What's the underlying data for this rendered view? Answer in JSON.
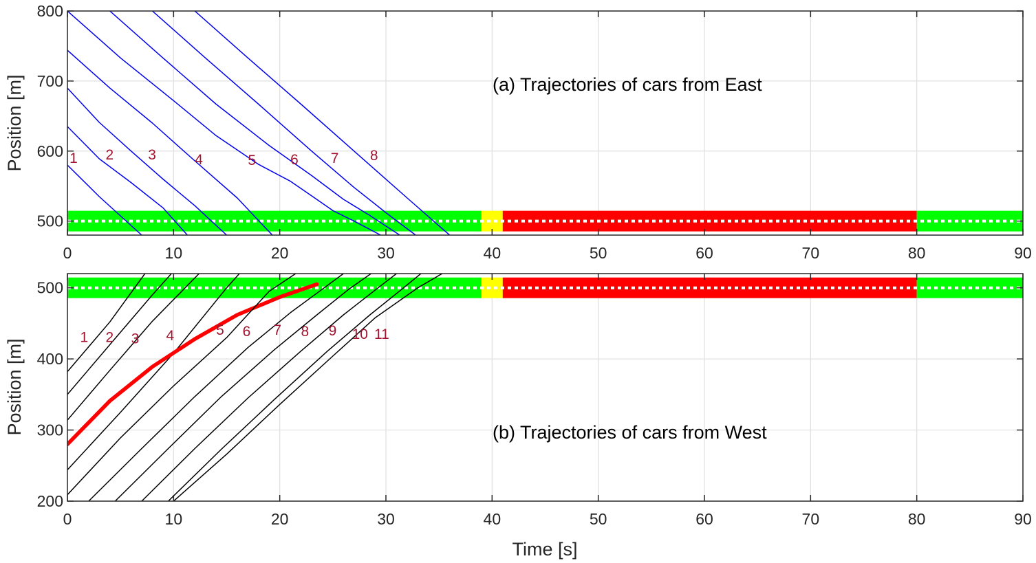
{
  "chart_data": [
    {
      "type": "line",
      "annotation": "(a) Trajectories of cars from East",
      "xlabel": "",
      "ylabel": "Position [m]",
      "xlim": [
        0,
        90
      ],
      "ylim": [
        480,
        800
      ],
      "xticks": [
        0,
        10,
        20,
        30,
        40,
        50,
        60,
        70,
        80,
        90
      ],
      "yticks": [
        500,
        600,
        700,
        800
      ],
      "grid": true,
      "signal": {
        "position": 500,
        "phases": [
          {
            "color": "green",
            "hex": "#00ff00",
            "start": 0,
            "end": 39
          },
          {
            "color": "yellow",
            "hex": "#ffff00",
            "start": 39,
            "end": 41
          },
          {
            "color": "red",
            "hex": "#ff0000",
            "start": 41,
            "end": 80
          },
          {
            "color": "green",
            "hex": "#00ff00",
            "start": 80,
            "end": 90
          }
        ]
      },
      "line_color": "#0000ee",
      "series": [
        {
          "name": "1",
          "x": [
            0,
            3,
            7
          ],
          "y": [
            580,
            535,
            480
          ]
        },
        {
          "name": "2",
          "x": [
            0,
            3,
            6,
            9,
            11.3
          ],
          "y": [
            635,
            589,
            555,
            519,
            480
          ]
        },
        {
          "name": "3",
          "x": [
            0,
            3,
            6,
            9,
            12,
            15
          ],
          "y": [
            690,
            641,
            600,
            560,
            522,
            480
          ]
        },
        {
          "name": "4",
          "x": [
            0,
            4,
            8,
            12,
            16,
            19.3
          ],
          "y": [
            744,
            690,
            640,
            586,
            533,
            480
          ]
        },
        {
          "name": "5",
          "x": [
            0,
            5,
            10,
            14,
            18,
            21,
            23,
            25,
            27,
            29.5
          ],
          "y": [
            800,
            733,
            672,
            622,
            581,
            557,
            536,
            515,
            500,
            480
          ]
        },
        {
          "name": "6",
          "x": [
            4,
            9,
            14,
            19,
            23,
            26,
            28.5,
            31.3
          ],
          "y": [
            800,
            733,
            667,
            608,
            565,
            531,
            508,
            480
          ]
        },
        {
          "name": "7",
          "x": [
            8,
            13,
            18,
            23,
            27,
            30,
            32.8
          ],
          "y": [
            800,
            733,
            667,
            600,
            548,
            512,
            480
          ]
        },
        {
          "name": "8",
          "x": [
            12,
            17,
            22,
            27,
            32,
            36
          ],
          "y": [
            800,
            733,
            667,
            600,
            533,
            480
          ]
        }
      ],
      "labels": [
        {
          "text": "1",
          "x": 0.2,
          "y": 583
        },
        {
          "text": "2",
          "x": 3.6,
          "y": 588
        },
        {
          "text": "3",
          "x": 7.6,
          "y": 588
        },
        {
          "text": "4",
          "x": 12,
          "y": 581
        },
        {
          "text": "5",
          "x": 17,
          "y": 580
        },
        {
          "text": "6",
          "x": 21,
          "y": 581
        },
        {
          "text": "7",
          "x": 24.8,
          "y": 583
        },
        {
          "text": "8",
          "x": 28.5,
          "y": 587
        }
      ]
    },
    {
      "type": "line",
      "annotation": "(b) Trajectories of cars from West",
      "xlabel": "Time [s]",
      "ylabel": "Position [m]",
      "xlim": [
        0,
        90
      ],
      "ylim": [
        200,
        520
      ],
      "xticks": [
        0,
        10,
        20,
        30,
        40,
        50,
        60,
        70,
        80,
        90
      ],
      "yticks": [
        200,
        300,
        400,
        500
      ],
      "grid": true,
      "signal": {
        "position": 500,
        "phases": [
          {
            "color": "green",
            "hex": "#00ff00",
            "start": 0,
            "end": 39
          },
          {
            "color": "yellow",
            "hex": "#ffff00",
            "start": 39,
            "end": 41
          },
          {
            "color": "red",
            "hex": "#ff0000",
            "start": 41,
            "end": 80
          },
          {
            "color": "green",
            "hex": "#00ff00",
            "start": 80,
            "end": 90
          }
        ]
      },
      "line_color": "#000000",
      "highlight_color": "#ff0000",
      "series": [
        {
          "name": "1",
          "x": [
            0,
            4,
            7.3
          ],
          "y": [
            382,
            452,
            520
          ]
        },
        {
          "name": "2",
          "x": [
            0,
            4,
            8,
            9.8
          ],
          "y": [
            350,
            420,
            490,
            520
          ]
        },
        {
          "name": "3",
          "x": [
            0,
            4,
            8,
            12.4
          ],
          "y": [
            314,
            384,
            453,
            520
          ]
        },
        {
          "name": "4",
          "x": [
            0,
            5,
            10,
            15,
            16.2
          ],
          "y": [
            244,
            325,
            408,
            500,
            520
          ]
        },
        {
          "name": "5",
          "x": [
            0,
            4,
            8,
            12,
            16,
            20,
            23.5
          ],
          "y": [
            280,
            341,
            389,
            428,
            462,
            487,
            505
          ],
          "highlight": true
        },
        {
          "name": "6",
          "x": [
            0,
            5,
            10,
            15,
            19,
            21.5
          ],
          "y": [
            209,
            289,
            362,
            430,
            495,
            520
          ]
        },
        {
          "name": "7",
          "x": [
            2,
            7,
            12,
            17,
            21,
            24,
            26
          ],
          "y": [
            200,
            274,
            347,
            416,
            465,
            498,
            520
          ]
        },
        {
          "name": "8",
          "x": [
            4.5,
            9.5,
            14.5,
            19.5,
            23.5,
            26.5,
            28.6
          ],
          "y": [
            200,
            274,
            347,
            413,
            462,
            498,
            520
          ]
        },
        {
          "name": "9",
          "x": [
            7,
            12,
            17,
            22,
            26,
            29,
            31
          ],
          "y": [
            200,
            274,
            345,
            411,
            462,
            497,
            520
          ]
        },
        {
          "name": "10",
          "x": [
            9.5,
            14.5,
            19.5,
            24.5,
            28.5,
            31.5,
            33.3
          ],
          "y": [
            200,
            273,
            343,
            411,
            462,
            498,
            520
          ]
        },
        {
          "name": "11",
          "x": [
            10,
            15,
            20,
            25,
            29,
            33,
            35.3
          ],
          "y": [
            200,
            266,
            336,
            404,
            458,
            500,
            520
          ]
        }
      ],
      "labels": [
        {
          "text": "1",
          "x": 1.2,
          "y": 424
        },
        {
          "text": "2",
          "x": 3.6,
          "y": 424
        },
        {
          "text": "3",
          "x": 6,
          "y": 422
        },
        {
          "text": "4",
          "x": 9.3,
          "y": 426
        },
        {
          "text": "5",
          "x": 14,
          "y": 434
        },
        {
          "text": "6",
          "x": 16.5,
          "y": 432
        },
        {
          "text": "7",
          "x": 19.4,
          "y": 434
        },
        {
          "text": "8",
          "x": 22,
          "y": 432
        },
        {
          "text": "9",
          "x": 24.6,
          "y": 433
        },
        {
          "text": "10",
          "x": 26.8,
          "y": 428
        },
        {
          "text": "11",
          "x": 28.9,
          "y": 428
        }
      ]
    }
  ]
}
